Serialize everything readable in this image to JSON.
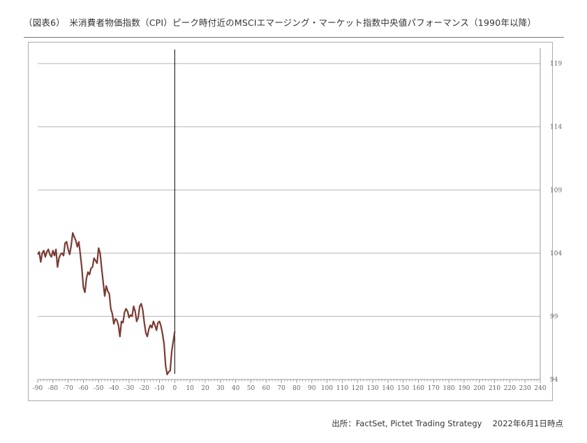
{
  "title": "（図表6）　米消費者物価指数（CPI）ピーク時付近のMSCIエマージング・マーケット指数中央値パフォーマンス（1990年以降）",
  "footer": "出所：FactSet, Pictet Trading Strategy　 2022年6月1日時点",
  "colors": {
    "line": "#7b3b33",
    "grid": "#b5b5b5",
    "axis": "#999999",
    "marker": "#000000"
  },
  "chart_data": {
    "type": "line",
    "title": "",
    "xlabel": "",
    "ylabel": "",
    "xlim": [
      -90,
      240
    ],
    "ylim": [
      94,
      120
    ],
    "x_ticks": [
      -90,
      -80,
      -70,
      -60,
      -50,
      -40,
      -30,
      -20,
      -10,
      0,
      10,
      20,
      30,
      40,
      50,
      60,
      70,
      80,
      90,
      100,
      110,
      120,
      130,
      140,
      150,
      160,
      170,
      180,
      190,
      200,
      210,
      220,
      230,
      240
    ],
    "y_ticks": [
      94,
      99,
      104,
      109,
      114,
      119
    ],
    "y_axis_position": "right",
    "grid": "horizontal",
    "vertical_marker_x": 0,
    "series": [
      {
        "points": [
          [
            -90,
            103.9
          ],
          [
            -89,
            104.1
          ],
          [
            -88,
            103.3
          ],
          [
            -87,
            104.0
          ],
          [
            -86,
            104.2
          ],
          [
            -85,
            103.7
          ],
          [
            -84,
            104.1
          ],
          [
            -83,
            104.3
          ],
          [
            -82,
            103.9
          ],
          [
            -81,
            103.7
          ],
          [
            -80,
            104.2
          ],
          [
            -79,
            103.8
          ],
          [
            -78,
            104.3
          ],
          [
            -77,
            102.9
          ],
          [
            -76,
            103.6
          ],
          [
            -75,
            103.9
          ],
          [
            -74,
            104.0
          ],
          [
            -73,
            103.8
          ],
          [
            -72,
            104.8
          ],
          [
            -71,
            104.9
          ],
          [
            -70,
            104.3
          ],
          [
            -69,
            103.9
          ],
          [
            -68,
            104.6
          ],
          [
            -67,
            105.6
          ],
          [
            -66,
            105.3
          ],
          [
            -65,
            105.0
          ],
          [
            -64,
            104.5
          ],
          [
            -63,
            104.9
          ],
          [
            -62,
            103.9
          ],
          [
            -61,
            102.8
          ],
          [
            -60,
            101.3
          ],
          [
            -59,
            100.9
          ],
          [
            -58,
            102.0
          ],
          [
            -57,
            102.5
          ],
          [
            -56,
            102.3
          ],
          [
            -55,
            102.8
          ],
          [
            -54,
            102.9
          ],
          [
            -53,
            103.6
          ],
          [
            -52,
            103.4
          ],
          [
            -51,
            103.2
          ],
          [
            -50,
            104.4
          ],
          [
            -49,
            104.0
          ],
          [
            -48,
            102.8
          ],
          [
            -47,
            101.7
          ],
          [
            -46,
            100.6
          ],
          [
            -45,
            101.4
          ],
          [
            -44,
            101.0
          ],
          [
            -43,
            100.8
          ],
          [
            -42,
            99.6
          ],
          [
            -41,
            99.2
          ],
          [
            -40,
            98.4
          ],
          [
            -39,
            98.8
          ],
          [
            -38,
            98.7
          ],
          [
            -37,
            98.3
          ],
          [
            -36,
            97.4
          ],
          [
            -35,
            98.6
          ],
          [
            -34,
            98.5
          ],
          [
            -33,
            99.3
          ],
          [
            -32,
            99.6
          ],
          [
            -31,
            99.4
          ],
          [
            -30,
            98.9
          ],
          [
            -29,
            99.1
          ],
          [
            -28,
            99.0
          ],
          [
            -27,
            99.8
          ],
          [
            -26,
            99.4
          ],
          [
            -25,
            98.6
          ],
          [
            -24,
            98.9
          ],
          [
            -23,
            99.8
          ],
          [
            -22,
            100.0
          ],
          [
            -21,
            99.5
          ],
          [
            -20,
            98.5
          ],
          [
            -19,
            97.7
          ],
          [
            -18,
            97.4
          ],
          [
            -17,
            98.0
          ],
          [
            -16,
            98.3
          ],
          [
            -15,
            98.1
          ],
          [
            -14,
            98.6
          ],
          [
            -13,
            98.3
          ],
          [
            -12,
            97.9
          ],
          [
            -11,
            98.5
          ],
          [
            -10,
            98.6
          ],
          [
            -9,
            98.2
          ],
          [
            -8,
            97.6
          ],
          [
            -7,
            96.8
          ],
          [
            -6,
            95.1
          ],
          [
            -5,
            94.4
          ],
          [
            -4,
            94.6
          ],
          [
            -3,
            94.7
          ],
          [
            -2,
            96.2
          ],
          [
            -1,
            97.0
          ],
          [
            0,
            97.8
          ]
        ]
      }
    ]
  }
}
